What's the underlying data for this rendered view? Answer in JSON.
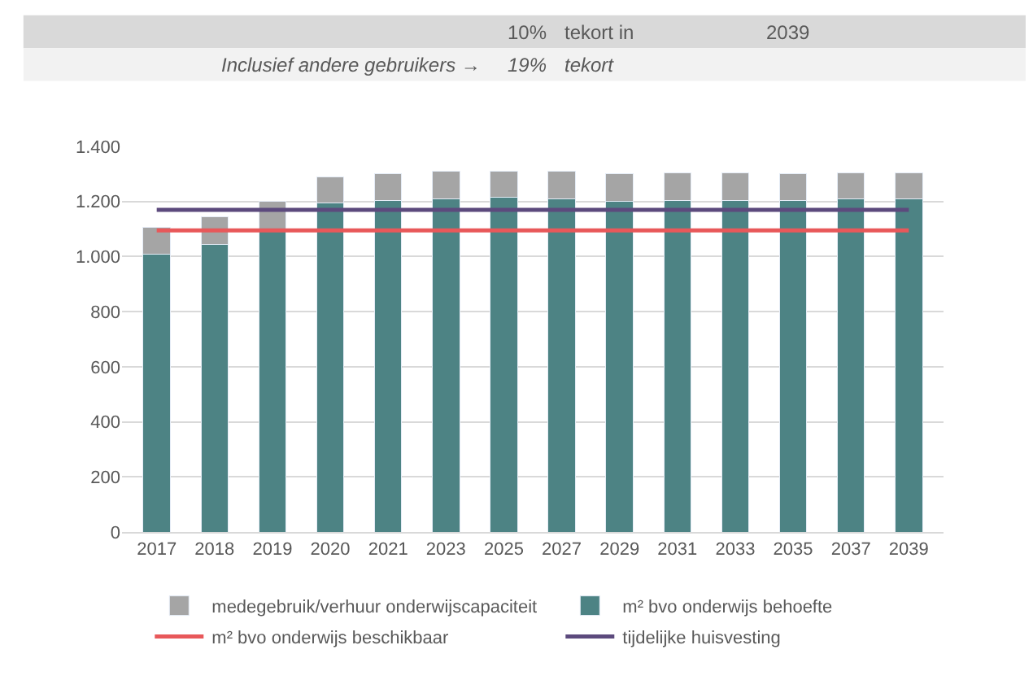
{
  "chart_data": {
    "type": "bar",
    "stacked": true,
    "categories": [
      "2017",
      "2018",
      "2019",
      "2020",
      "2021",
      "2023",
      "2025",
      "2027",
      "2029",
      "2031",
      "2033",
      "2035",
      "2037",
      "2039"
    ],
    "series": [
      {
        "name": "m² bvo onderwijs behoefte",
        "color": "#4d8384",
        "values": [
          1010,
          1045,
          1090,
          1195,
          1205,
          1210,
          1215,
          1210,
          1200,
          1205,
          1205,
          1205,
          1210,
          1210
        ]
      },
      {
        "name": "medegebruik/verhuur onderwijscapaciteit",
        "color": "#a5a5a5",
        "values": [
          95,
          100,
          110,
          95,
          95,
          100,
          95,
          100,
          100,
          100,
          100,
          95,
          95,
          95
        ]
      },
      {
        "name": "m² bvo onderwijs beschikbaar",
        "type": "line",
        "color": "#e8585a",
        "values": [
          1095,
          1095,
          1095,
          1095,
          1095,
          1095,
          1095,
          1095,
          1095,
          1095,
          1095,
          1095,
          1095,
          1095
        ]
      },
      {
        "name": "tijdelijke huisvesting",
        "type": "line",
        "color": "#5c4a7d",
        "values": [
          1170,
          1170,
          1170,
          1170,
          1170,
          1170,
          1170,
          1170,
          1170,
          1170,
          1170,
          1170,
          1170,
          1170
        ]
      }
    ],
    "ylim": [
      0,
      1400
    ],
    "yticks": [
      0,
      200,
      400,
      600,
      800,
      {
        "value": 1000,
        "label": "1.000"
      },
      {
        "value": 1200,
        "label": "1.200"
      },
      {
        "value": 1400,
        "label": "1.400"
      }
    ],
    "grid": "y",
    "legend": "bottom",
    "marker": "none",
    "line_style": "solid",
    "annotations": [
      "10%",
      "tekort in",
      "2039",
      "Inclusief andere gebruikers →",
      "19%",
      "tekort"
    ]
  }
}
